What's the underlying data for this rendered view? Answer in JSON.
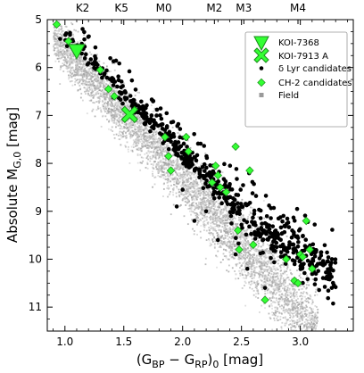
{
  "chart_data": {
    "type": "scatter",
    "xlabel": "(G_BP − G_RP)_0 [mag]",
    "xlabel_main": "(G",
    "xlabel_sub1": "BP",
    "xlabel_mid": " − G",
    "xlabel_sub2": "RP",
    "xlabel_close": ")",
    "xlabel_sub3": "0",
    "xlabel_unit": " [mag]",
    "ylabel": "Absolute M_G,0 [mag]",
    "ylabel_main": "Absolute M",
    "ylabel_sub": "G,0",
    "ylabel_unit": " [mag]",
    "xlim": [
      0.85,
      3.45
    ],
    "ylim": [
      11.5,
      5.0
    ],
    "y_inverted": true,
    "x_ticks": [
      1.0,
      1.5,
      2.0,
      2.5,
      3.0
    ],
    "x_tick_labels": [
      "1.0",
      "1.5",
      "2.0",
      "2.5",
      "3.0"
    ],
    "y_ticks": [
      5,
      6,
      7,
      8,
      9,
      10,
      11
    ],
    "y_tick_labels": [
      "5",
      "6",
      "7",
      "8",
      "9",
      "10",
      "11"
    ],
    "top_axis": {
      "labels": [
        "K2",
        "K5",
        "M0",
        "M2",
        "M3",
        "M4"
      ],
      "x": [
        1.15,
        1.48,
        1.84,
        2.27,
        2.52,
        2.98
      ]
    },
    "legend_position": "top-right",
    "legend": [
      {
        "label": "KOI-7368",
        "marker": "triangle-down",
        "color": "#33ff33"
      },
      {
        "label": "KOI-7913 A",
        "marker": "x-cross",
        "color": "#33ff33"
      },
      {
        "label": "δ Lyr candidates",
        "marker": "circle",
        "color": "#000000"
      },
      {
        "label": "CH-2 candidates",
        "marker": "diamond",
        "color": "#33ff33"
      },
      {
        "label": "Field",
        "marker": "square",
        "color": "#888888"
      }
    ],
    "series": [
      {
        "name": "KOI-7368",
        "x": [
          1.1
        ],
        "y": [
          5.65
        ]
      },
      {
        "name": "KOI-7913 A",
        "x": [
          1.55
        ],
        "y": [
          6.98
        ]
      },
      {
        "name": "CH-2 candidates",
        "x": [
          0.93,
          1.03,
          1.08,
          1.3,
          1.37,
          1.42,
          1.85,
          1.88,
          1.9,
          2.03,
          2.05,
          2.25,
          2.28,
          2.3,
          2.32,
          2.37,
          2.45,
          2.47,
          2.48,
          2.57,
          2.6,
          2.7,
          2.88,
          2.95,
          2.98,
          3.0,
          3.02,
          3.05,
          3.08,
          3.1
        ],
        "y": [
          5.1,
          5.45,
          5.6,
          6.05,
          6.45,
          6.6,
          7.45,
          7.85,
          8.15,
          7.45,
          7.75,
          8.4,
          8.05,
          8.25,
          8.5,
          8.6,
          7.65,
          9.4,
          9.8,
          8.15,
          9.7,
          10.85,
          10.0,
          10.45,
          10.5,
          9.9,
          9.95,
          9.2,
          9.8,
          10.2
        ]
      },
      {
        "name": "δ Lyr candidates",
        "points": "generated along cluster sequence from (0.95, 5.2) to (3.3, 10.5)"
      },
      {
        "name": "Field",
        "points": "dense gray band from (0.92, 5.2) to (3.0, 11.5)"
      }
    ]
  },
  "colors": {
    "highlight": "#33ff33",
    "highlight_edge": "#1a8c1a",
    "cluster": "#000000",
    "field": "#9a9a9a"
  }
}
